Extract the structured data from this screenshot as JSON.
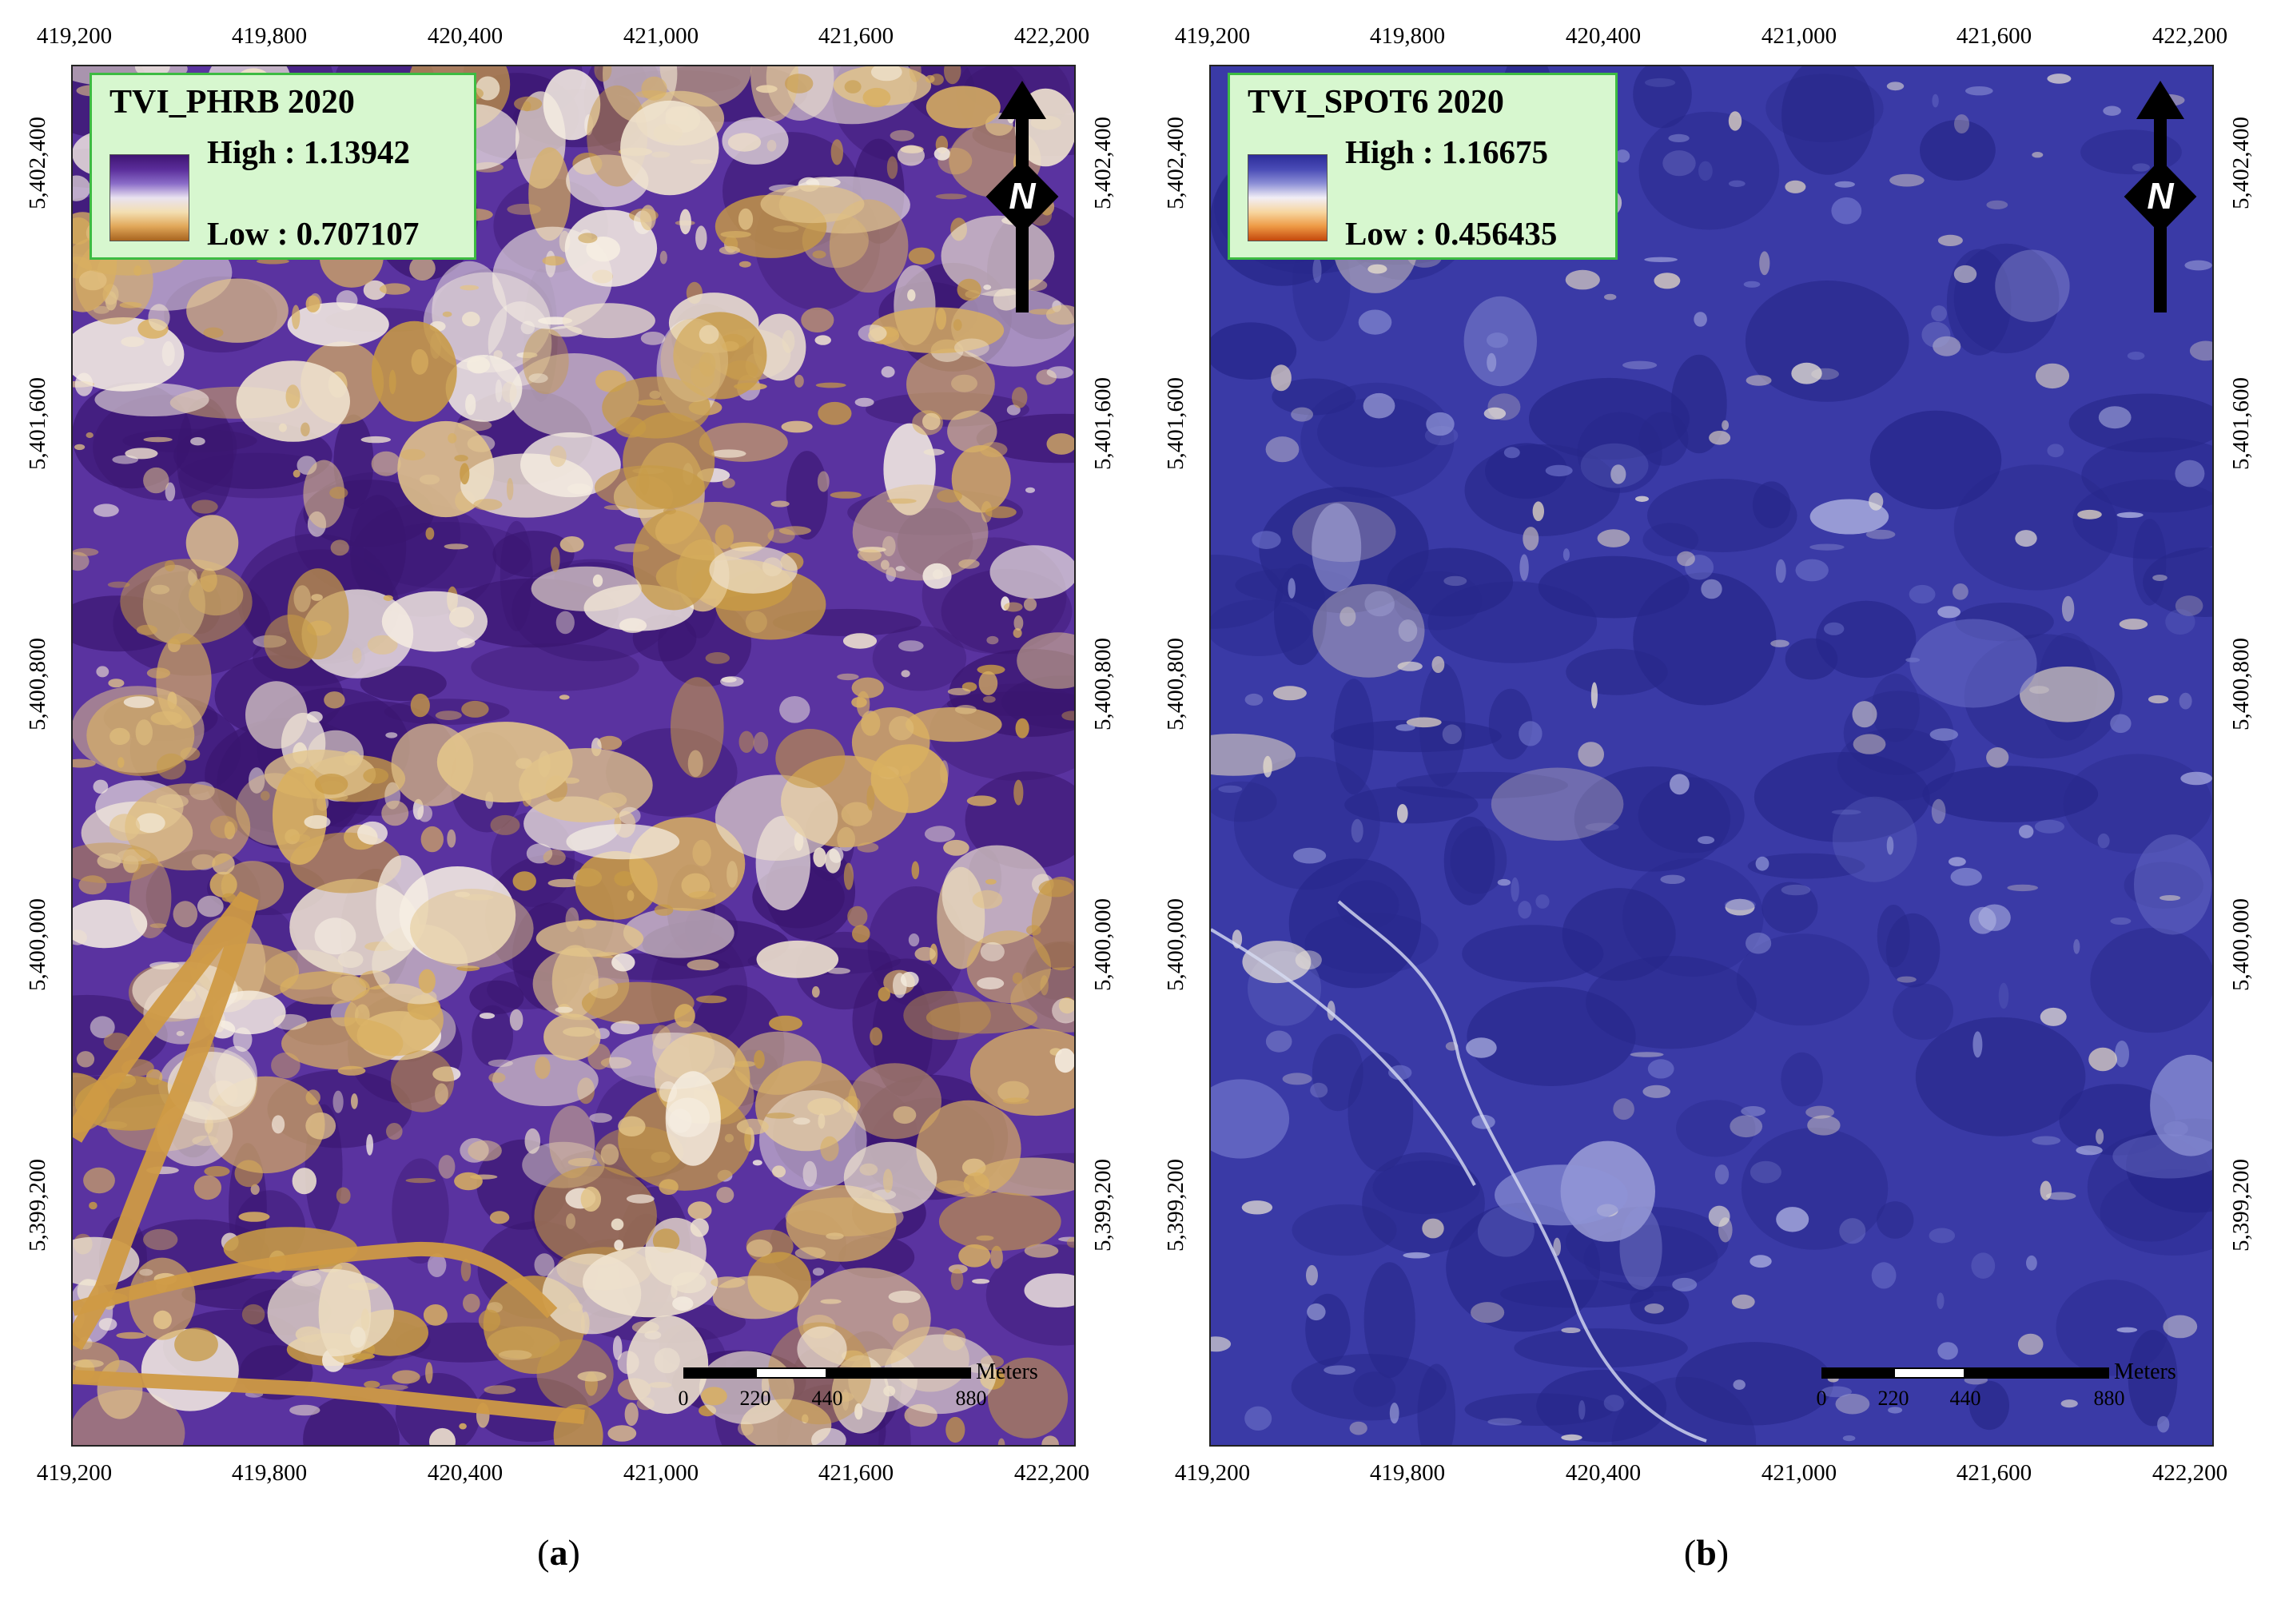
{
  "panels": [
    {
      "id": "a",
      "caption_prefix": "(",
      "caption_letter": "a",
      "caption_suffix": ")",
      "legend": {
        "title": "TVI_PHRB 2020",
        "high_label": "High : 1.13942",
        "low_label": "Low : 0.707107",
        "ramp_colors": [
          "#3f1472",
          "#5a2d9a",
          "#8a6cc8",
          "#e9e2f0",
          "#f3dfb2",
          "#e1a85a",
          "#a8641f"
        ]
      },
      "raster": {
        "base_color": "#5a33a0",
        "patch_colors": [
          "#d9b060",
          "#e2c48a",
          "#efe3cf",
          "#c79a45",
          "#f6eee2"
        ],
        "dark_color": "#3a1670",
        "river_color": "#cf9a45"
      },
      "x_ticks": [
        "419,200",
        "419,800",
        "420,400",
        "421,000",
        "421,600",
        "422,200"
      ],
      "y_ticks": [
        "5,402,400",
        "5,401,600",
        "5,400,800",
        "5,400,000",
        "5,399,200"
      ],
      "scale": {
        "units": "Meters",
        "labels": [
          "0",
          "220",
          "440",
          "880"
        ]
      }
    },
    {
      "id": "b",
      "caption_prefix": "(",
      "caption_letter": "b",
      "caption_suffix": ")",
      "legend": {
        "title": "TVI_SPOT6 2020",
        "high_label": "High : 1.16675",
        "low_label": "Low : 0.456435",
        "ramp_colors": [
          "#2c2c99",
          "#4a4cb6",
          "#8c8fd6",
          "#f2eef6",
          "#f7d6a0",
          "#ee9a45",
          "#c4480c"
        ]
      },
      "raster": {
        "base_color": "#3a3aa6",
        "patch_colors": [
          "#6d72c9",
          "#b7bbe6",
          "#f1ebd8",
          "#8e94d6",
          "#e8dcc4"
        ],
        "dark_color": "#27278a",
        "river_color": "#d7dcf3"
      },
      "x_ticks": [
        "419,200",
        "419,800",
        "420,400",
        "421,000",
        "421,600",
        "422,200"
      ],
      "y_ticks": [
        "5,402,400",
        "5,401,600",
        "5,400,800",
        "5,400,000",
        "5,399,200"
      ],
      "scale": {
        "units": "Meters",
        "labels": [
          "0",
          "220",
          "440",
          "880"
        ]
      }
    }
  ],
  "north_arrow": {
    "letter": "N",
    "icon": "north-arrow-icon"
  }
}
